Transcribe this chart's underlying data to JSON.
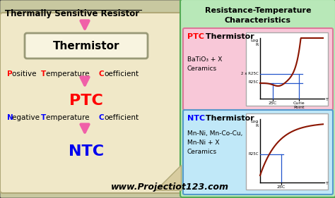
{
  "title": "Thermally Sensitive Resistor",
  "bg_color": "#c8c8a0",
  "outer_border_color": "#444444",
  "left_panel_bg": "#f0e8c8",
  "left_panel_border": "#b0a878",
  "right_panel_bg": "#b8e8b8",
  "right_panel_border": "#55aa55",
  "right_panel_title": "Resistance-Temperature\nCharacteristics",
  "ptc_bg": "#f8c8d8",
  "ptc_border": "#dd7799",
  "ptc_title_color": "#ff0000",
  "ptc_label": "BaTiO₃ + X\nCeramics",
  "ntc_bg": "#c0e8f8",
  "ntc_border": "#5599cc",
  "ntc_title_color": "#0000ff",
  "ntc_label": "Mn-Ni, Mn-Co-Cu,\nMn-Ni + X\nCeramics",
  "thermistor_box_bg": "#f8f4e0",
  "thermistor_box_border": "#999977",
  "arrow_color": "#f060a8",
  "ptc_color": "#ff0000",
  "ntc_color": "#0000ee",
  "positive_text_black": "ositive ",
  "positive_text2_black": "emperature ",
  "positive_text3_black": "oefficient",
  "negative_text_black": "egative ",
  "negative_text2_black": "emperature ",
  "negative_text3_black": "oefficient",
  "thermistor_label": "Thermistor",
  "ptc_abbr": "PTC",
  "ntc_abbr": "NTC",
  "website": "www.Projectiot123.com",
  "graph_line_color": "#8b1500",
  "graph_ref_color": "#2255cc",
  "graph_bg": "#e8e8e8"
}
